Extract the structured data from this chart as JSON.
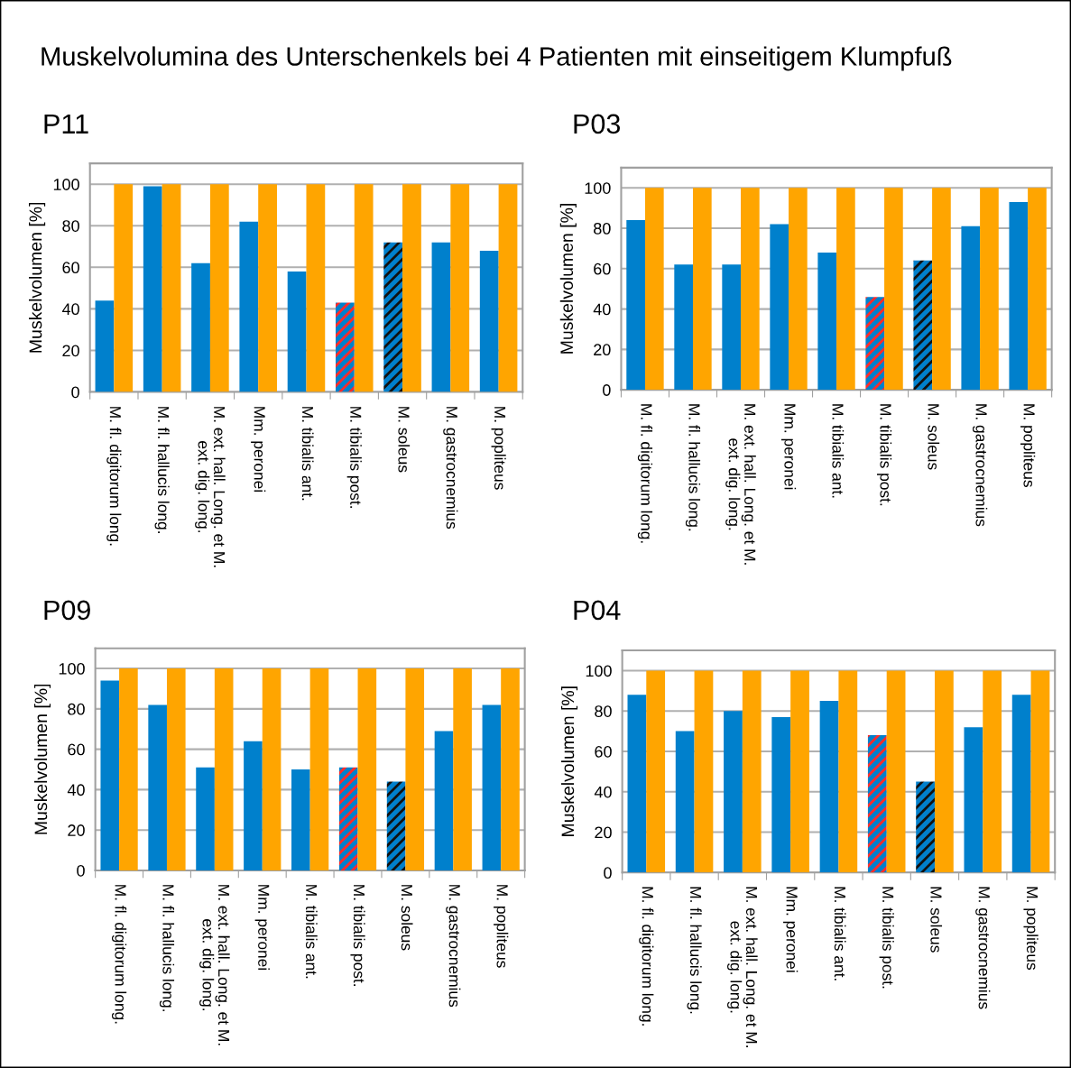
{
  "chart_data": [
    {
      "type": "bar",
      "title": "P11",
      "annotations": [
        "Muskelvolumina des Unterschenkels bei 4 Patienten mit einseitigem Klumpfuß"
      ],
      "ylabel": "Muskelvolumen [%]",
      "categories": [
        "M. fl. digitorum long.",
        "M. fl. hallucis long.",
        "M. ext. hall. Long. et M.\next. dig. long.",
        "Mm. peronei",
        "M. tibialis ant.",
        "M. tibialis post.",
        "M. soleus",
        "M. gastrocnemius",
        "M. popliteus"
      ],
      "series": [
        {
          "color": "#0080cc",
          "values": [
            44,
            99,
            62,
            82,
            58,
            43,
            72,
            72,
            68
          ],
          "colors": [
            "#0080cc",
            "#0080cc",
            "#0080cc",
            "#0080cc",
            "#0080cc",
            "#ff2a2a",
            "#111111",
            "#0080cc",
            "#0080cc"
          ]
        },
        {
          "color": "#ffa500",
          "values": [
            100,
            100,
            100,
            100,
            100,
            100,
            100,
            100,
            100
          ]
        }
      ],
      "ylim": [
        0,
        110
      ],
      "yticks": [
        0,
        20,
        40,
        60,
        80,
        100
      ],
      "grid": "y",
      "legend": false
    },
    {
      "type": "bar",
      "title": "P03",
      "ylabel": "Muskelvolumen [%]",
      "categories": [
        "M. fl. digitorum long.",
        "M. fl. hallucis long.",
        "M. ext. hall. Long. et M.\next. dig. long.",
        "Mm. peronei",
        "M. tibialis ant.",
        "M. tibialis post.",
        "M. soleus",
        "M. gastrocnemius",
        "M. popliteus"
      ],
      "series": [
        {
          "color": "#0080cc",
          "values": [
            84,
            62,
            62,
            82,
            68,
            46,
            64,
            81,
            93
          ],
          "colors": [
            "#0080cc",
            "#0080cc",
            "#0080cc",
            "#0080cc",
            "#0080cc",
            "#ff2a2a",
            "#111111",
            "#0080cc",
            "#0080cc"
          ]
        },
        {
          "color": "#ffa500",
          "values": [
            100,
            100,
            100,
            100,
            100,
            100,
            100,
            100,
            100
          ]
        }
      ],
      "ylim": [
        0,
        110
      ],
      "yticks": [
        0,
        20,
        40,
        60,
        80,
        100
      ],
      "grid": "y",
      "legend": false
    },
    {
      "type": "bar",
      "title": "P09",
      "ylabel": "Muskelvolumen [%]",
      "categories": [
        "M. fl. digitorum long.",
        "M. fl. hallucis long.",
        "M. ext. hall. Long. et M.\next. dig. long.",
        "Mm. peronei",
        "M. tibialis ant.",
        "M. tibialis post.",
        "M. soleus",
        "M. gastrocnemius",
        "M. popliteus"
      ],
      "series": [
        {
          "color": "#0080cc",
          "values": [
            94,
            82,
            51,
            64,
            50,
            51,
            44,
            69,
            82
          ],
          "colors": [
            "#0080cc",
            "#0080cc",
            "#0080cc",
            "#0080cc",
            "#0080cc",
            "#ff2a2a",
            "#111111",
            "#0080cc",
            "#0080cc"
          ]
        },
        {
          "color": "#ffa500",
          "values": [
            100,
            100,
            100,
            100,
            100,
            100,
            100,
            100,
            100
          ]
        }
      ],
      "ylim": [
        0,
        110
      ],
      "yticks": [
        0,
        20,
        40,
        60,
        80,
        100
      ],
      "grid": "y",
      "legend": false
    },
    {
      "type": "bar",
      "title": "P04",
      "ylabel": "Muskelvolumen [%]",
      "categories": [
        "M. fl. digitorum long.",
        "M. fl. hallucis long.",
        "M. ext. hall. Long. et M.\next. dig. long.",
        "Mm. peronei",
        "M. tibialis ant.",
        "M. tibialis post.",
        "M. soleus",
        "M. gastrocnemius",
        "M. popliteus"
      ],
      "series": [
        {
          "color": "#0080cc",
          "values": [
            88,
            70,
            80,
            77,
            85,
            68,
            45,
            72,
            88
          ],
          "colors": [
            "#0080cc",
            "#0080cc",
            "#0080cc",
            "#0080cc",
            "#0080cc",
            "#ff2a2a",
            "#111111",
            "#0080cc",
            "#0080cc"
          ]
        },
        {
          "color": "#ffa500",
          "values": [
            100,
            100,
            100,
            100,
            100,
            100,
            100,
            100,
            100
          ]
        }
      ],
      "ylim": [
        0,
        110
      ],
      "yticks": [
        0,
        20,
        40,
        60,
        80,
        100
      ],
      "grid": "y",
      "legend": false
    }
  ]
}
